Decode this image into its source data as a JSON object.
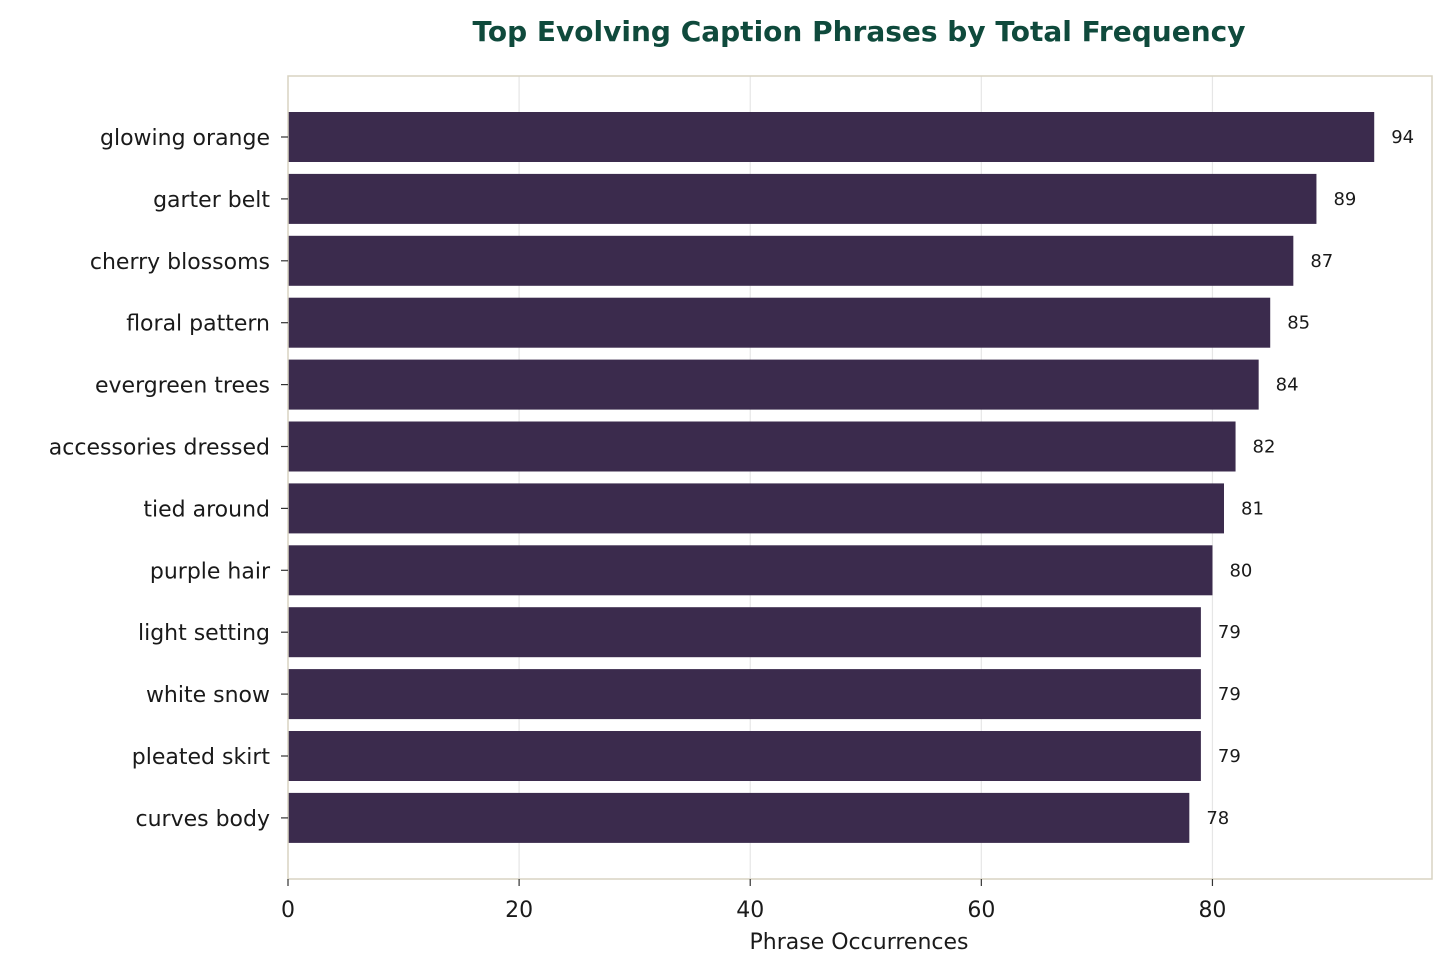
{
  "chart_data": {
    "type": "bar",
    "orientation": "horizontal",
    "title": "Top Evolving Caption Phrases by Total Frequency",
    "xlabel": "Phrase Occurrences",
    "ylabel": "",
    "categories": [
      "glowing orange",
      "garter belt",
      "cherry blossoms",
      "floral pattern",
      "evergreen trees",
      "accessories dressed",
      "tied around",
      "purple hair",
      "light setting",
      "white snow",
      "pleated skirt",
      "curves body"
    ],
    "values": [
      94,
      89,
      87,
      85,
      84,
      82,
      81,
      80,
      79,
      79,
      79,
      78
    ],
    "data_labels": [
      "94",
      "89",
      "87",
      "85",
      "84",
      "82",
      "81",
      "80",
      "79",
      "79",
      "79",
      "78"
    ],
    "xticks": [
      0,
      20,
      40,
      60,
      80
    ],
    "xtick_labels": [
      "0",
      "20",
      "40",
      "60",
      "80"
    ],
    "xlim": [
      0,
      99
    ],
    "grid": "vertical",
    "colors": {
      "bar": "#3b2b4d",
      "title": "#0f4a3c",
      "frame": "#d8d3c2",
      "grid": "#e6e6e6",
      "text": "#1a1a1a"
    }
  }
}
